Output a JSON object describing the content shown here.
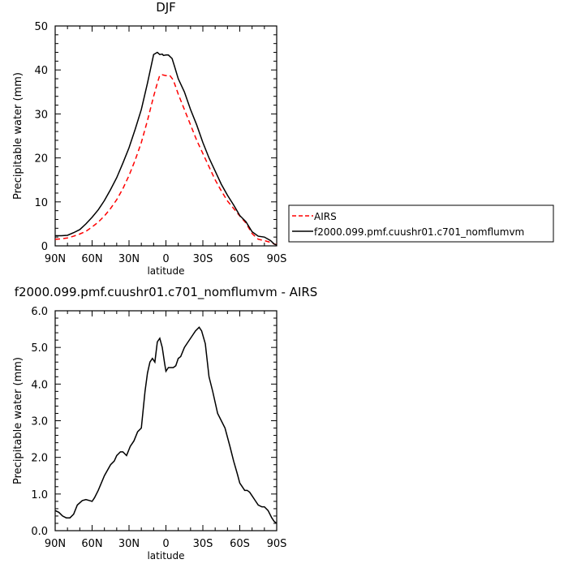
{
  "chart_data": [
    {
      "type": "line",
      "title": "DJF",
      "xlabel": "latitude",
      "ylabel": "Precipitable water (mm)",
      "xticks": [
        "90N",
        "60N",
        "30N",
        "0",
        "30S",
        "60S",
        "90S"
      ],
      "yticks": [
        "0",
        "10",
        "20",
        "30",
        "40",
        "50"
      ],
      "xlim": [
        90,
        -90
      ],
      "ylim": [
        0,
        50
      ],
      "legend_position": "right",
      "series": [
        {
          "name": "AIRS",
          "color": "#ff0000",
          "dash": "dashed",
          "x": [
            90,
            85,
            80,
            75,
            70,
            65,
            60,
            55,
            50,
            45,
            40,
            35,
            30,
            25,
            20,
            15,
            10,
            7,
            5,
            3,
            0,
            -3,
            -6,
            -10,
            -15,
            -20,
            -25,
            -30,
            -35,
            -40,
            -45,
            -50,
            -55,
            -60,
            -65,
            -70,
            -75,
            -80,
            -85,
            -88,
            -90
          ],
          "y": [
            1.5,
            1.6,
            1.8,
            2.2,
            2.7,
            3.3,
            4.3,
            5.4,
            6.8,
            8.5,
            10.5,
            13,
            16,
            19.5,
            23.5,
            28.5,
            34,
            37,
            38.8,
            38.9,
            38.7,
            38.8,
            37.7,
            34.5,
            31,
            27.5,
            24,
            21,
            18,
            15,
            12.5,
            10.2,
            8.5,
            6.8,
            5.2,
            2.8,
            1.5,
            1.2,
            0.8,
            0.4,
            0.3
          ]
        },
        {
          "name": "f2000.099.pmf.cuushr01.c701_nomflumvm",
          "color": "#000000",
          "dash": "solid",
          "x": [
            90,
            85,
            80,
            75,
            70,
            65,
            60,
            55,
            50,
            45,
            40,
            35,
            30,
            25,
            20,
            15,
            10,
            7,
            5,
            3,
            2,
            0,
            -2,
            -5,
            -7,
            -10,
            -15,
            -20,
            -25,
            -30,
            -35,
            -40,
            -45,
            -50,
            -55,
            -60,
            -65,
            -70,
            -75,
            -80,
            -85,
            -88,
            -90
          ],
          "y": [
            2.3,
            2.3,
            2.4,
            3.0,
            3.7,
            5.0,
            6.5,
            8.2,
            10.3,
            12.8,
            15.5,
            18.8,
            22.3,
            26.5,
            31,
            37,
            43.5,
            44.0,
            43.5,
            43.6,
            43.3,
            43.4,
            43.4,
            42.6,
            40.8,
            38.0,
            35.0,
            31.0,
            27.5,
            23.5,
            20.0,
            17.0,
            14.0,
            11.5,
            9.3,
            6.9,
            5.5,
            3.2,
            2.2,
            2.0,
            1.2,
            0.4,
            0.2
          ]
        }
      ]
    },
    {
      "type": "line",
      "title": "f2000.099.pmf.cuushr01.c701_nomflumvm - AIRS",
      "xlabel": "latitude",
      "ylabel": "Precipitable water (mm)",
      "xticks": [
        "90N",
        "60N",
        "30N",
        "0",
        "30S",
        "60S",
        "90S"
      ],
      "yticks": [
        "0.0",
        "1.0",
        "2.0",
        "3.0",
        "4.0",
        "5.0",
        "6.0"
      ],
      "xlim": [
        90,
        -90
      ],
      "ylim": [
        0,
        6
      ],
      "series": [
        {
          "color": "#000000",
          "dash": "solid",
          "x": [
            90,
            87,
            84,
            81,
            78,
            75,
            72,
            68,
            65,
            62,
            60,
            58,
            55,
            50,
            45,
            42,
            40,
            37,
            35,
            32,
            29,
            26,
            23,
            20,
            17,
            15,
            13,
            11,
            9,
            7,
            5,
            3,
            1,
            0,
            -2,
            -4,
            -6,
            -8,
            -10,
            -12,
            -15,
            -18,
            -21,
            -24,
            -27,
            -29,
            -32,
            -35,
            -38,
            -42,
            -45,
            -48,
            -52,
            -55,
            -58,
            -60,
            -62,
            -64,
            -66,
            -68,
            -70,
            -72,
            -75,
            -78,
            -80,
            -83,
            -86,
            -88,
            -90
          ],
          "y": [
            0.55,
            0.5,
            0.4,
            0.35,
            0.35,
            0.45,
            0.7,
            0.82,
            0.85,
            0.82,
            0.8,
            0.9,
            1.1,
            1.5,
            1.8,
            1.9,
            2.05,
            2.15,
            2.15,
            2.05,
            2.3,
            2.45,
            2.7,
            2.8,
            3.8,
            4.3,
            4.6,
            4.7,
            4.6,
            5.15,
            5.25,
            5.0,
            4.55,
            4.35,
            4.45,
            4.45,
            4.45,
            4.5,
            4.7,
            4.75,
            5.0,
            5.15,
            5.3,
            5.45,
            5.55,
            5.45,
            5.1,
            4.2,
            3.8,
            3.2,
            3.0,
            2.8,
            2.3,
            1.9,
            1.55,
            1.3,
            1.2,
            1.1,
            1.1,
            1.05,
            0.95,
            0.85,
            0.7,
            0.65,
            0.65,
            0.55,
            0.35,
            0.25,
            0.2
          ]
        }
      ]
    }
  ]
}
